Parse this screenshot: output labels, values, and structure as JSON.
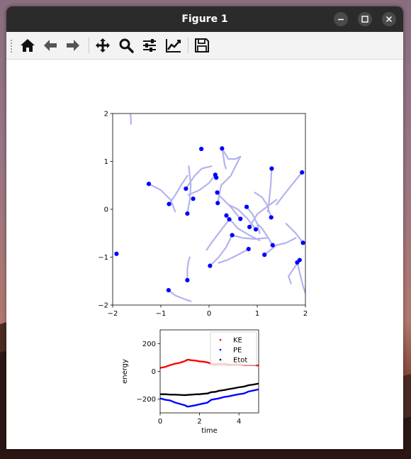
{
  "window": {
    "title": "Figure 1"
  },
  "toolbar": {
    "buttons": [
      {
        "name": "home-button",
        "icon": "home-icon"
      },
      {
        "name": "back-button",
        "icon": "arrow-left-icon"
      },
      {
        "name": "forward-button",
        "icon": "arrow-right-icon"
      },
      {
        "name": "pan-button",
        "icon": "move-icon"
      },
      {
        "name": "zoom-button",
        "icon": "magnifier-icon"
      },
      {
        "name": "configure-subplots-button",
        "icon": "sliders-icon"
      },
      {
        "name": "edit-axis-button",
        "icon": "line-chart-icon"
      },
      {
        "name": "save-button",
        "icon": "floppy-disk-icon"
      }
    ]
  },
  "chart_data": [
    {
      "type": "scatter",
      "title": "",
      "xlabel": "",
      "ylabel": "",
      "xlim": [
        -2,
        2
      ],
      "ylim": [
        -2,
        2
      ],
      "xticks": [
        "−2",
        "−1",
        "0",
        "1",
        "2"
      ],
      "yticks": [
        "−2",
        "−1",
        "0",
        "1",
        "2"
      ],
      "grid": false,
      "colors": {
        "points": "#0000ff",
        "trails": "#b3b3f0"
      },
      "points": [
        {
          "x": -0.16,
          "y": 1.26
        },
        {
          "x": 0.13,
          "y": 0.72
        },
        {
          "x": 0.15,
          "y": 0.66
        },
        {
          "x": -1.25,
          "y": 0.53
        },
        {
          "x": -0.48,
          "y": 0.43
        },
        {
          "x": 0.17,
          "y": 0.35
        },
        {
          "x": -0.33,
          "y": 0.22
        },
        {
          "x": -0.83,
          "y": 0.11
        },
        {
          "x": 0.18,
          "y": 0.13
        },
        {
          "x": 0.78,
          "y": 0.05
        },
        {
          "x": -0.45,
          "y": -0.09
        },
        {
          "x": 0.36,
          "y": -0.13
        },
        {
          "x": 0.42,
          "y": -0.21
        },
        {
          "x": 0.65,
          "y": -0.2
        },
        {
          "x": 1.29,
          "y": -0.17
        },
        {
          "x": 0.84,
          "y": -0.37
        },
        {
          "x": 0.97,
          "y": -0.42
        },
        {
          "x": 0.48,
          "y": -0.54
        },
        {
          "x": 1.32,
          "y": -0.75
        },
        {
          "x": 0.82,
          "y": -0.83
        },
        {
          "x": 1.15,
          "y": -0.95
        },
        {
          "x": -1.92,
          "y": -0.93
        },
        {
          "x": 1.95,
          "y": -0.7
        },
        {
          "x": 1.88,
          "y": -1.06
        },
        {
          "x": 1.83,
          "y": -1.11
        },
        {
          "x": 0.02,
          "y": -1.18
        },
        {
          "x": -0.45,
          "y": -1.48
        },
        {
          "x": -0.84,
          "y": -1.69
        },
        {
          "x": 1.3,
          "y": 0.85
        },
        {
          "x": 1.93,
          "y": 0.77
        },
        {
          "x": 0.27,
          "y": 1.27
        }
      ],
      "trails": [
        [
          [
            -1.63,
            1.98
          ],
          [
            -1.62,
            1.88
          ],
          [
            -1.62,
            1.78
          ]
        ],
        [
          [
            0.27,
            1.27
          ],
          [
            0.3,
            1.1
          ],
          [
            0.32,
            0.95
          ],
          [
            0.35,
            0.85
          ]
        ],
        [
          [
            0.13,
            0.72
          ],
          [
            0.0,
            0.55
          ],
          [
            -0.2,
            0.4
          ],
          [
            -0.43,
            0.3
          ]
        ],
        [
          [
            -1.25,
            0.53
          ],
          [
            -1.0,
            0.4
          ],
          [
            -0.8,
            0.2
          ],
          [
            -0.7,
            -0.05
          ]
        ],
        [
          [
            -0.48,
            0.43
          ],
          [
            -0.3,
            0.7
          ],
          [
            -0.15,
            0.85
          ],
          [
            0.05,
            0.9
          ]
        ],
        [
          [
            0.18,
            0.13
          ],
          [
            0.25,
            0.5
          ],
          [
            0.45,
            0.7
          ],
          [
            0.65,
            1.1
          ]
        ],
        [
          [
            -0.83,
            0.11
          ],
          [
            -0.7,
            0.3
          ],
          [
            -0.55,
            0.55
          ],
          [
            -0.45,
            0.7
          ]
        ],
        [
          [
            -0.45,
            -0.09
          ],
          [
            -0.4,
            0.2
          ],
          [
            -0.38,
            0.5
          ],
          [
            -0.42,
            0.9
          ]
        ],
        [
          [
            0.78,
            0.05
          ],
          [
            0.9,
            -0.1
          ],
          [
            1.0,
            -0.3
          ],
          [
            1.05,
            -0.5
          ]
        ],
        [
          [
            0.36,
            -0.13
          ],
          [
            0.6,
            -0.4
          ],
          [
            0.85,
            -0.55
          ],
          [
            1.05,
            -0.65
          ]
        ],
        [
          [
            0.42,
            -0.21
          ],
          [
            0.2,
            -0.5
          ],
          [
            0.05,
            -0.7
          ],
          [
            -0.05,
            -0.85
          ]
        ],
        [
          [
            0.65,
            -0.2
          ],
          [
            0.45,
            0.05
          ],
          [
            0.3,
            0.2
          ],
          [
            0.15,
            0.35
          ]
        ],
        [
          [
            1.29,
            -0.17
          ],
          [
            1.2,
            0.1
          ],
          [
            1.1,
            0.25
          ],
          [
            0.95,
            0.35
          ]
        ],
        [
          [
            0.84,
            -0.37
          ],
          [
            1.0,
            -0.1
          ],
          [
            1.2,
            0.05
          ],
          [
            1.4,
            0.2
          ]
        ],
        [
          [
            0.97,
            -0.42
          ],
          [
            0.8,
            -0.2
          ],
          [
            0.6,
            0.0
          ],
          [
            0.4,
            0.1
          ]
        ],
        [
          [
            0.48,
            -0.54
          ],
          [
            0.7,
            -0.6
          ],
          [
            0.95,
            -0.62
          ],
          [
            1.2,
            -0.6
          ]
        ],
        [
          [
            1.32,
            -0.75
          ],
          [
            1.2,
            -0.55
          ],
          [
            1.1,
            -0.4
          ],
          [
            1.0,
            -0.3
          ]
        ],
        [
          [
            0.82,
            -0.83
          ],
          [
            0.6,
            -0.95
          ],
          [
            0.4,
            -1.05
          ],
          [
            0.2,
            -1.12
          ]
        ],
        [
          [
            1.15,
            -0.95
          ],
          [
            1.4,
            -0.75
          ],
          [
            1.6,
            -0.7
          ],
          [
            1.8,
            -0.6
          ]
        ],
        [
          [
            1.95,
            -0.7
          ],
          [
            1.8,
            -0.5
          ],
          [
            1.7,
            -0.4
          ],
          [
            1.6,
            -0.3
          ]
        ],
        [
          [
            1.88,
            -1.06
          ],
          [
            1.75,
            -1.25
          ],
          [
            1.65,
            -1.4
          ],
          [
            1.7,
            -1.55
          ]
        ],
        [
          [
            1.83,
            -1.11
          ],
          [
            1.9,
            -1.4
          ],
          [
            1.95,
            -1.6
          ],
          [
            2.0,
            -1.75
          ]
        ],
        [
          [
            0.02,
            -1.18
          ],
          [
            0.2,
            -1.0
          ],
          [
            0.35,
            -0.8
          ],
          [
            0.48,
            -0.54
          ]
        ],
        [
          [
            -0.45,
            -1.48
          ],
          [
            -0.45,
            -1.25
          ],
          [
            -0.43,
            -1.1
          ],
          [
            -0.4,
            -1.0
          ]
        ],
        [
          [
            -0.84,
            -1.69
          ],
          [
            -0.7,
            -1.8
          ],
          [
            -0.5,
            -1.88
          ],
          [
            -0.38,
            -1.92
          ]
        ],
        [
          [
            1.3,
            0.85
          ],
          [
            1.28,
            0.5
          ],
          [
            1.25,
            0.2
          ],
          [
            1.22,
            -0.05
          ]
        ],
        [
          [
            1.93,
            0.77
          ],
          [
            1.75,
            0.55
          ],
          [
            1.55,
            0.3
          ],
          [
            1.4,
            0.1
          ]
        ],
        [
          [
            0.27,
            1.27
          ],
          [
            0.4,
            1.05
          ],
          [
            0.55,
            1.05
          ],
          [
            0.65,
            1.1
          ]
        ]
      ]
    },
    {
      "type": "scatter",
      "title": "",
      "xlabel": "time",
      "ylabel": "energy",
      "xlim": [
        0,
        5
      ],
      "ylim": [
        -300,
        300
      ],
      "xticks": [
        "0",
        "2",
        "4"
      ],
      "yticks": [
        "−200",
        "0",
        "200"
      ],
      "grid": false,
      "legend": "top-right",
      "series": [
        {
          "name": "KE",
          "color": "#ff0000",
          "t": [
            0,
            0.25,
            0.5,
            0.75,
            1.0,
            1.25,
            1.4,
            1.6,
            1.8,
            2.0,
            2.2,
            2.4,
            2.6,
            2.8,
            3.0,
            3.25,
            3.5,
            3.75,
            4.0,
            4.25,
            4.5,
            4.75,
            5.0
          ],
          "values": [
            25,
            32,
            45,
            55,
            62,
            74,
            85,
            80,
            78,
            72,
            70,
            65,
            55,
            52,
            55,
            55,
            48,
            50,
            50,
            45,
            45,
            45,
            42
          ]
        },
        {
          "name": "PE",
          "color": "#0000ff",
          "t": [
            0,
            0.25,
            0.5,
            0.75,
            1.0,
            1.25,
            1.4,
            1.6,
            1.8,
            2.0,
            2.2,
            2.4,
            2.6,
            2.8,
            3.0,
            3.25,
            3.5,
            3.75,
            4.0,
            4.25,
            4.5,
            4.75,
            5.0
          ],
          "values": [
            -195,
            -205,
            -210,
            -225,
            -235,
            -245,
            -255,
            -250,
            -245,
            -238,
            -232,
            -226,
            -205,
            -200,
            -195,
            -185,
            -180,
            -172,
            -165,
            -160,
            -145,
            -138,
            -130
          ]
        },
        {
          "name": "Etot",
          "color": "#000000",
          "t": [
            0,
            0.25,
            0.5,
            0.75,
            1.0,
            1.25,
            1.4,
            1.6,
            1.8,
            2.0,
            2.2,
            2.4,
            2.6,
            2.8,
            3.0,
            3.25,
            3.5,
            3.75,
            4.0,
            4.25,
            4.5,
            4.75,
            5.0
          ],
          "values": [
            -165,
            -165,
            -168,
            -168,
            -170,
            -172,
            -170,
            -168,
            -166,
            -165,
            -162,
            -160,
            -150,
            -148,
            -140,
            -135,
            -128,
            -122,
            -115,
            -110,
            -100,
            -95,
            -88
          ]
        }
      ]
    }
  ]
}
